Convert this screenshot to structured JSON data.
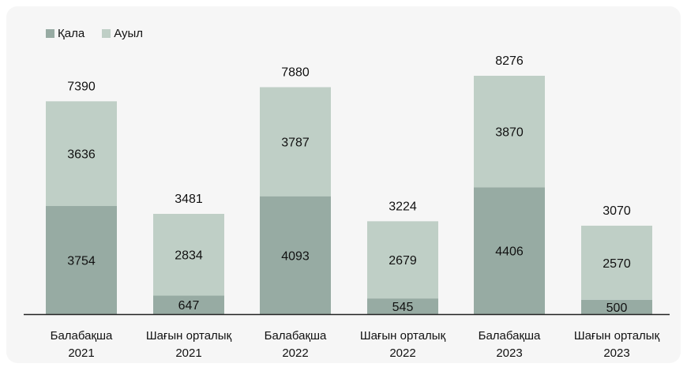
{
  "colors": {
    "city": "#97aba3",
    "village": "#bfcfc6",
    "axis": "#222222"
  },
  "legend": {
    "city_label": "Қала",
    "village_label": "Ауыл"
  },
  "chart_data": {
    "type": "bar",
    "stacked": true,
    "categories": [
      [
        "Балабақша",
        "2021"
      ],
      [
        "Шағын орталық",
        "2021"
      ],
      [
        "Балабақша",
        "2022"
      ],
      [
        "Шағын орталық",
        "2022"
      ],
      [
        "Балабақша",
        "2023"
      ],
      [
        "Шағын орталық",
        "2023"
      ]
    ],
    "series": [
      {
        "name": "Қала",
        "values": [
          3754,
          647,
          4093,
          545,
          4406,
          500
        ]
      },
      {
        "name": "Ауыл",
        "values": [
          3636,
          2834,
          3787,
          2679,
          3870,
          2570
        ]
      }
    ],
    "totals": [
      7390,
      3481,
      7880,
      3224,
      8276,
      3070
    ],
    "legend_position": "top-left",
    "grid": false
  }
}
